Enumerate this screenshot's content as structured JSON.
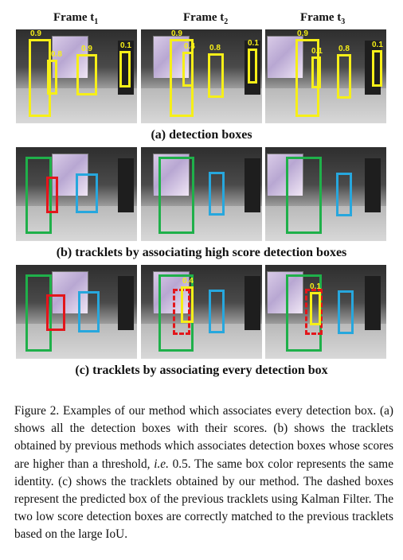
{
  "headers": [
    {
      "pre": "Frame t",
      "sub": "1"
    },
    {
      "pre": "Frame t",
      "sub": "2"
    },
    {
      "pre": "Frame t",
      "sub": "3"
    }
  ],
  "rows": [
    {
      "caption": "(a) detection boxes",
      "frames": [
        {
          "boxes": [
            {
              "color": "yel",
              "score": "0.9"
            },
            {
              "color": "yel",
              "score": "0.8"
            },
            {
              "color": "yel",
              "score": "0.9"
            },
            {
              "color": "yel",
              "score": "0.1"
            }
          ]
        },
        {
          "boxes": [
            {
              "color": "yel",
              "score": "0.9"
            },
            {
              "color": "yel",
              "score": "0.4"
            },
            {
              "color": "yel",
              "score": "0.8"
            },
            {
              "color": "yel",
              "score": "0.1"
            }
          ]
        },
        {
          "boxes": [
            {
              "color": "yel",
              "score": "0.9"
            },
            {
              "color": "yel",
              "score": "0.1"
            },
            {
              "color": "yel",
              "score": "0.8"
            },
            {
              "color": "yel",
              "score": "0.1"
            }
          ]
        }
      ]
    },
    {
      "caption": "(b) tracklets by associating high score detection boxes",
      "frames": [
        {
          "boxes": [
            {
              "color": "grn"
            },
            {
              "color": "red"
            },
            {
              "color": "blu"
            }
          ]
        },
        {
          "boxes": [
            {
              "color": "grn"
            },
            {
              "color": "blu"
            }
          ]
        },
        {
          "boxes": [
            {
              "color": "grn"
            },
            {
              "color": "blu"
            }
          ]
        }
      ]
    },
    {
      "caption": "(c) tracklets by associating every detection box",
      "frames": [
        {
          "boxes": [
            {
              "color": "grn"
            },
            {
              "color": "red"
            },
            {
              "color": "blu"
            }
          ]
        },
        {
          "boxes": [
            {
              "color": "grn"
            },
            {
              "color": "red",
              "dashed": true
            },
            {
              "color": "yel",
              "score": "0.4"
            },
            {
              "color": "blu"
            }
          ]
        },
        {
          "boxes": [
            {
              "color": "grn"
            },
            {
              "color": "red",
              "dashed": true
            },
            {
              "color": "yel",
              "score": "0.1"
            },
            {
              "color": "blu"
            }
          ]
        }
      ]
    }
  ],
  "figure_text": {
    "p1": "Figure 2. Examples of our method which associates every detection box. (a) shows all the detection boxes with their scores. (b) shows the tracklets obtained by previous methods which associates detection boxes whose scores are higher than a threshold, ",
    "ie": "i.e.",
    "p2": " 0.5. The same box color represents the same identity. (c) shows the tracklets obtained by our method. The dashed boxes represent the predicted box of the previous tracklets using Kalman Filter. The two low score detection boxes are correctly matched to the previous tracklets based on the large IoU."
  }
}
